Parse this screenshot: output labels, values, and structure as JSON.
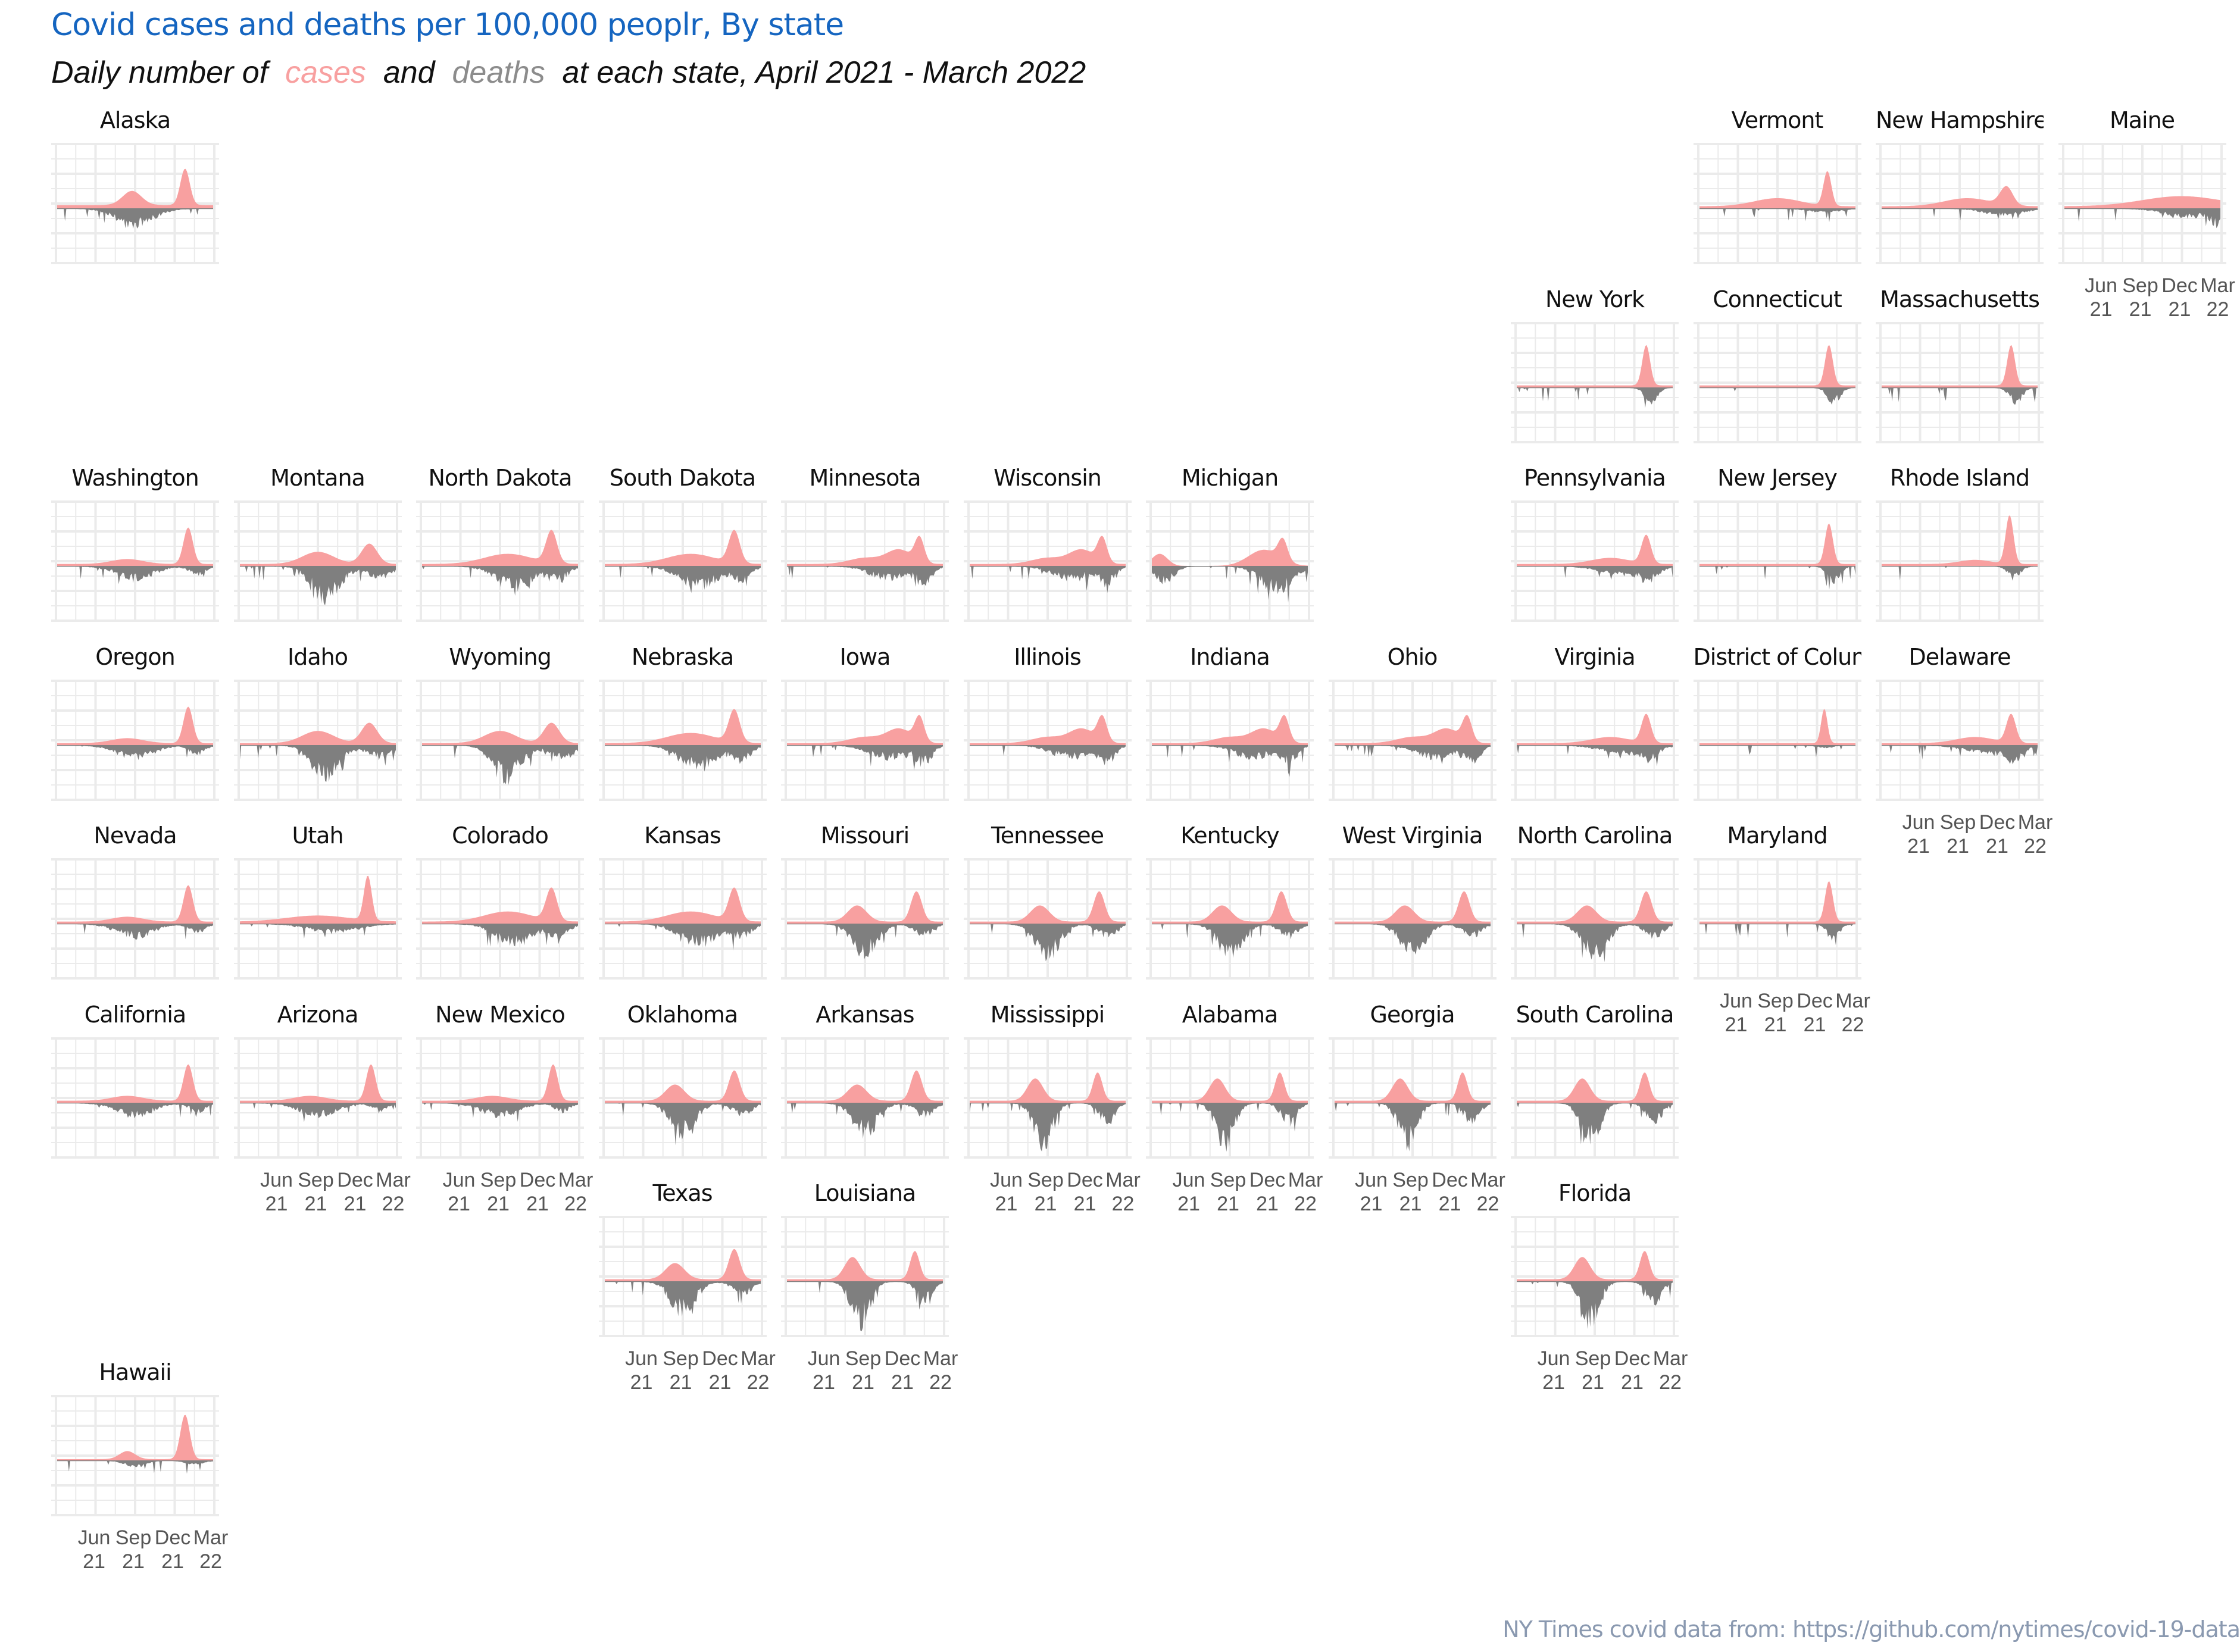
{
  "title": "Covid cases and deaths per 100,000 peoplr, By state",
  "subtitle": {
    "before": "Daily number of",
    "cases_word": "cases",
    "middle": "and",
    "deaths_word": "deaths",
    "after": "at each state, April 2021 - March 2022"
  },
  "caption": "NY Times covid data from: https://github.com/nytimes/covid-19-data",
  "colors": {
    "cases": "#f8a0a0",
    "deaths": "#7f7f7f",
    "grid": "#ebebeb",
    "title": "#1565c0",
    "caption": "#8a99b0"
  },
  "chart_data": {
    "type": "area",
    "layout": "small multiples (US state geofacet)",
    "x_ticks": [
      [
        "Jun",
        "21"
      ],
      [
        "Sep",
        "21"
      ],
      [
        "Dec",
        "21"
      ],
      [
        "Mar",
        "22"
      ]
    ],
    "series": [
      {
        "name": "cases"
      },
      {
        "name": "deaths"
      }
    ],
    "panels": [
      {
        "state": "Alaska",
        "row": 0,
        "col": 0,
        "shape": "alaska",
        "axis": false
      },
      {
        "state": "Vermont",
        "row": 0,
        "col": 9,
        "shape": "ne",
        "axis": false
      },
      {
        "state": "New Hampshire",
        "row": 0,
        "col": 10,
        "shape": "ne2",
        "axis": false
      },
      {
        "state": "Maine",
        "row": 0,
        "col": 11,
        "shape": "maine",
        "axis": true
      },
      {
        "state": "New York",
        "row": 1,
        "col": 8,
        "shape": "ny",
        "axis": false
      },
      {
        "state": "Connecticut",
        "row": 1,
        "col": 9,
        "shape": "ny",
        "axis": false
      },
      {
        "state": "Massachusetts",
        "row": 1,
        "col": 10,
        "shape": "ny",
        "axis": false
      },
      {
        "state": "Washington",
        "row": 2,
        "col": 0,
        "shape": "west",
        "axis": false
      },
      {
        "state": "Montana",
        "row": 2,
        "col": 1,
        "shape": "mountain",
        "axis": false
      },
      {
        "state": "North Dakota",
        "row": 2,
        "col": 2,
        "shape": "plains",
        "axis": false
      },
      {
        "state": "South Dakota",
        "row": 2,
        "col": 3,
        "shape": "plains",
        "axis": false
      },
      {
        "state": "Minnesota",
        "row": 2,
        "col": 4,
        "shape": "midwest",
        "axis": false
      },
      {
        "state": "Wisconsin",
        "row": 2,
        "col": 5,
        "shape": "midwest",
        "axis": false
      },
      {
        "state": "Michigan",
        "row": 2,
        "col": 6,
        "shape": "michigan",
        "axis": false
      },
      {
        "state": "Pennsylvania",
        "row": 2,
        "col": 8,
        "shape": "ne3",
        "axis": false
      },
      {
        "state": "New Jersey",
        "row": 2,
        "col": 9,
        "shape": "ny",
        "axis": false
      },
      {
        "state": "Rhode Island",
        "row": 2,
        "col": 10,
        "shape": "ri",
        "axis": false
      },
      {
        "state": "Oregon",
        "row": 3,
        "col": 0,
        "shape": "west",
        "axis": false
      },
      {
        "state": "Idaho",
        "row": 3,
        "col": 1,
        "shape": "mountain",
        "axis": false
      },
      {
        "state": "Wyoming",
        "row": 3,
        "col": 2,
        "shape": "mountain",
        "axis": false
      },
      {
        "state": "Nebraska",
        "row": 3,
        "col": 3,
        "shape": "plains",
        "axis": false
      },
      {
        "state": "Iowa",
        "row": 3,
        "col": 4,
        "shape": "midwest",
        "axis": false
      },
      {
        "state": "Illinois",
        "row": 3,
        "col": 5,
        "shape": "midwest",
        "axis": false
      },
      {
        "state": "Indiana",
        "row": 3,
        "col": 6,
        "shape": "midwest",
        "axis": false
      },
      {
        "state": "Ohio",
        "row": 3,
        "col": 7,
        "shape": "midwest",
        "axis": false
      },
      {
        "state": "Virginia",
        "row": 3,
        "col": 8,
        "shape": "ne3",
        "axis": false
      },
      {
        "state": "District of Columbia",
        "row": 3,
        "col": 9,
        "shape": "dc",
        "axis": false
      },
      {
        "state": "Delaware",
        "row": 3,
        "col": 10,
        "shape": "ne3",
        "axis": true
      },
      {
        "state": "Nevada",
        "row": 4,
        "col": 0,
        "shape": "west",
        "axis": false
      },
      {
        "state": "Utah",
        "row": 4,
        "col": 1,
        "shape": "utah",
        "axis": false
      },
      {
        "state": "Colorado",
        "row": 4,
        "col": 2,
        "shape": "plains",
        "axis": false
      },
      {
        "state": "Kansas",
        "row": 4,
        "col": 3,
        "shape": "plains",
        "axis": false
      },
      {
        "state": "Missouri",
        "row": 4,
        "col": 4,
        "shape": "south",
        "axis": false
      },
      {
        "state": "Tennessee",
        "row": 4,
        "col": 5,
        "shape": "south",
        "axis": false
      },
      {
        "state": "Kentucky",
        "row": 4,
        "col": 6,
        "shape": "south",
        "axis": false
      },
      {
        "state": "West Virginia",
        "row": 4,
        "col": 7,
        "shape": "south",
        "axis": false
      },
      {
        "state": "North Carolina",
        "row": 4,
        "col": 8,
        "shape": "south",
        "axis": false
      },
      {
        "state": "Maryland",
        "row": 4,
        "col": 9,
        "shape": "ny",
        "axis": true
      },
      {
        "state": "California",
        "row": 5,
        "col": 0,
        "shape": "west",
        "axis": false
      },
      {
        "state": "Arizona",
        "row": 5,
        "col": 1,
        "shape": "west",
        "axis": true
      },
      {
        "state": "New Mexico",
        "row": 5,
        "col": 2,
        "shape": "west",
        "axis": true
      },
      {
        "state": "Oklahoma",
        "row": 5,
        "col": 3,
        "shape": "south",
        "axis": false
      },
      {
        "state": "Arkansas",
        "row": 5,
        "col": 4,
        "shape": "south",
        "axis": false
      },
      {
        "state": "Mississippi",
        "row": 5,
        "col": 5,
        "shape": "deepsouth",
        "axis": true
      },
      {
        "state": "Alabama",
        "row": 5,
        "col": 6,
        "shape": "deepsouth",
        "axis": true
      },
      {
        "state": "Georgia",
        "row": 5,
        "col": 7,
        "shape": "deepsouth",
        "axis": true
      },
      {
        "state": "South Carolina",
        "row": 5,
        "col": 8,
        "shape": "deepsouth",
        "axis": false
      },
      {
        "state": "Texas",
        "row": 6,
        "col": 3,
        "shape": "south",
        "axis": true
      },
      {
        "state": "Louisiana",
        "row": 6,
        "col": 4,
        "shape": "deepsouth",
        "axis": true
      },
      {
        "state": "Florida",
        "row": 6,
        "col": 8,
        "shape": "deepsouth",
        "axis": true
      },
      {
        "state": "Hawaii",
        "row": 7,
        "col": 0,
        "shape": "hawaii",
        "axis": true
      }
    ]
  }
}
